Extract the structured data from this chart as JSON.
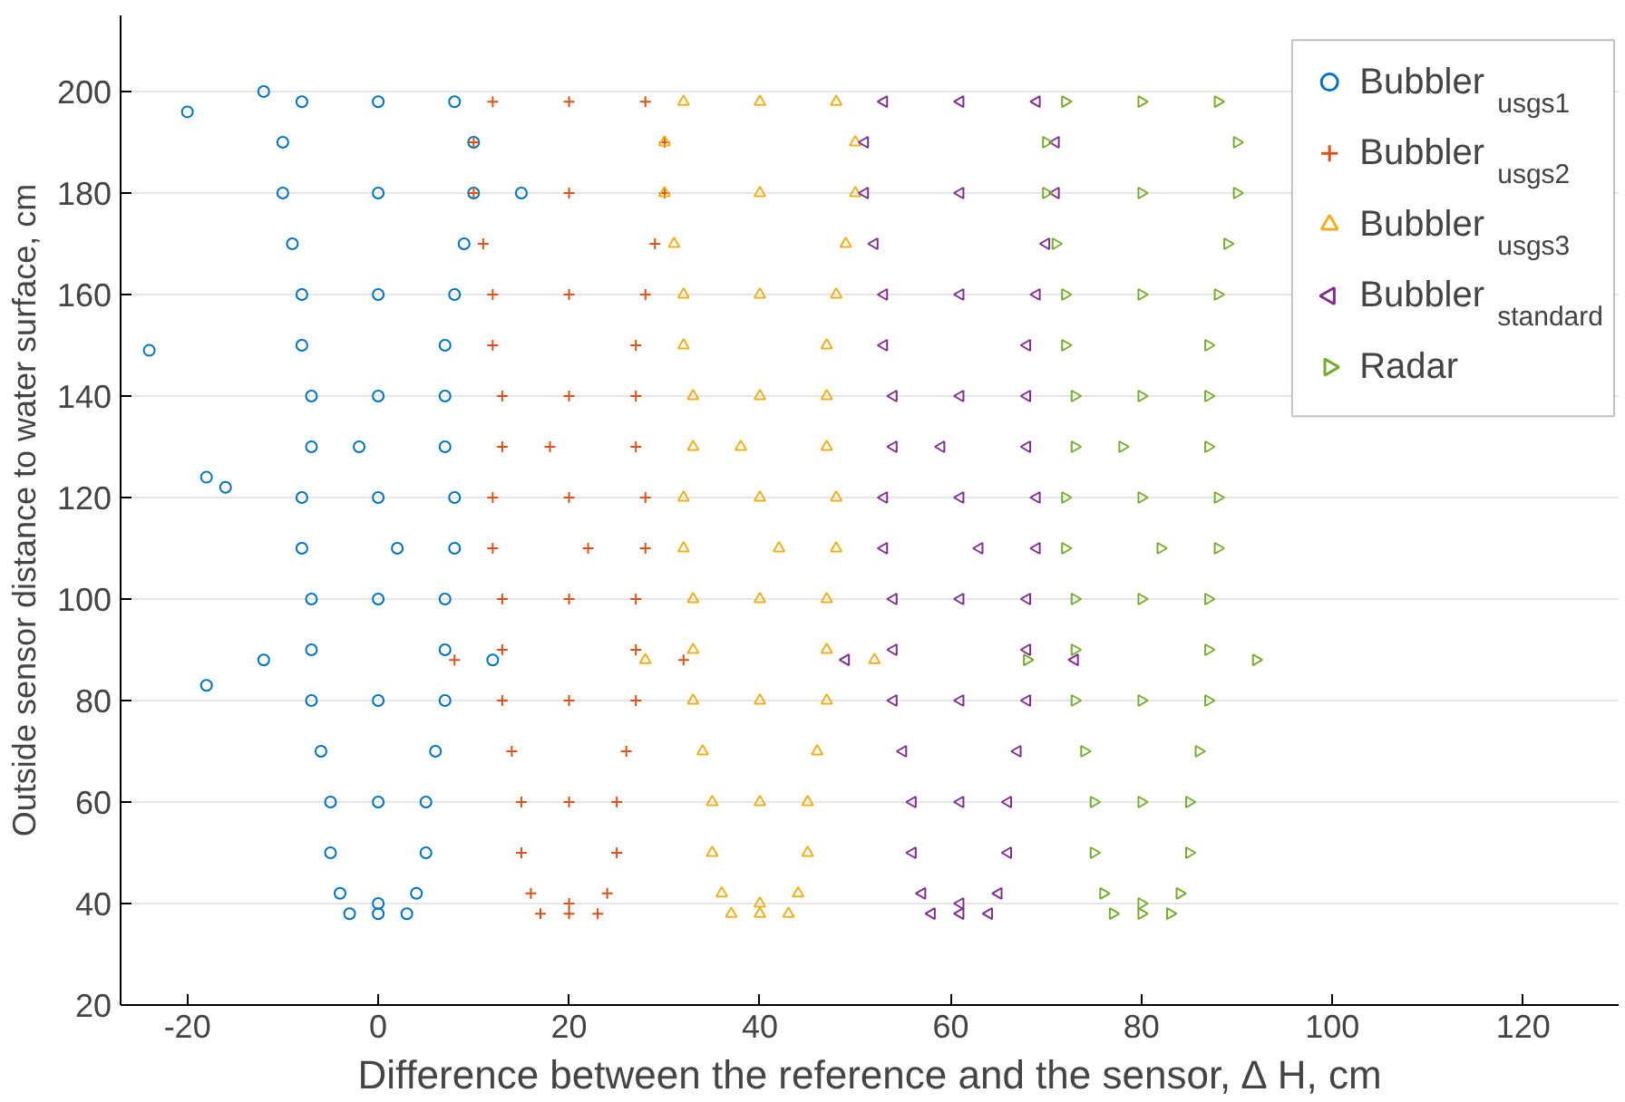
{
  "chart_data": {
    "type": "scatter",
    "xlabel": "Difference between the reference and the sensor, ∆ H, cm",
    "ylabel": "Outside sensor distance to water surface, cm",
    "xlim": [
      -27,
      130
    ],
    "ylim": [
      20,
      215
    ],
    "xticks": [
      -20,
      0,
      20,
      40,
      60,
      80,
      100,
      120
    ],
    "yticks": [
      20,
      40,
      60,
      80,
      100,
      120,
      140,
      160,
      180,
      200
    ],
    "grid": "y",
    "legend": "top right",
    "series": [
      {
        "name": "Bubbler$_{usgs1}$",
        "color": "#0072bd",
        "marker": "circle",
        "x": [
          -3,
          0,
          3,
          -4,
          4,
          -5,
          5,
          -5,
          5,
          -6,
          6,
          -7,
          7,
          0,
          0,
          -7,
          7,
          0,
          -7,
          7,
          -8,
          8,
          0,
          -8,
          8,
          -7,
          7,
          0,
          -7,
          7,
          -8,
          7,
          -8,
          8,
          0,
          -9,
          9,
          0,
          -10,
          10,
          -10,
          10,
          -8,
          0,
          8,
          12,
          -12,
          0,
          2,
          -2,
          -24,
          -18,
          -18,
          -16,
          -20,
          -12,
          15
        ],
        "values": [
          38,
          38,
          38,
          42,
          42,
          50,
          50,
          60,
          60,
          70,
          70,
          80,
          80,
          60,
          80,
          90,
          90,
          100,
          100,
          100,
          110,
          110,
          120,
          120,
          120,
          130,
          130,
          140,
          140,
          140,
          150,
          150,
          160,
          160,
          160,
          170,
          170,
          180,
          180,
          180,
          190,
          190,
          198,
          198,
          198,
          88,
          88,
          40,
          110,
          130,
          149,
          83,
          124,
          122,
          196,
          200,
          180
        ]
      },
      {
        "name": "Bubbler$_{usgs2}$",
        "color": "#d95319",
        "marker": "cross",
        "x": [
          17,
          20,
          23,
          16,
          24,
          15,
          25,
          15,
          25,
          14,
          26,
          13,
          27,
          20,
          20,
          13,
          27,
          20,
          13,
          27,
          12,
          28,
          20,
          12,
          28,
          13,
          27,
          20,
          13,
          27,
          12,
          27,
          12,
          28,
          20,
          11,
          29,
          20,
          10,
          30,
          10,
          30,
          12,
          20,
          28,
          32,
          8,
          20,
          22,
          18
        ],
        "values": [
          38,
          38,
          38,
          42,
          42,
          50,
          50,
          60,
          60,
          70,
          70,
          80,
          80,
          60,
          80,
          90,
          90,
          100,
          100,
          100,
          110,
          110,
          120,
          120,
          120,
          130,
          130,
          140,
          140,
          140,
          150,
          150,
          160,
          160,
          160,
          170,
          170,
          180,
          180,
          180,
          190,
          190,
          198,
          198,
          198,
          88,
          88,
          40,
          110,
          130
        ]
      },
      {
        "name": "Bubbler$_{usgs3}$",
        "color": "#edb120",
        "marker": "triangle",
        "x": [
          37,
          40,
          43,
          36,
          44,
          35,
          45,
          35,
          45,
          34,
          46,
          33,
          47,
          40,
          40,
          33,
          47,
          40,
          33,
          47,
          32,
          48,
          40,
          32,
          48,
          33,
          47,
          40,
          33,
          47,
          32,
          47,
          32,
          48,
          40,
          31,
          49,
          40,
          30,
          50,
          30,
          50,
          32,
          40,
          48,
          52,
          28,
          40,
          42,
          38
        ],
        "values": [
          38,
          38,
          38,
          42,
          42,
          50,
          50,
          60,
          60,
          70,
          70,
          80,
          80,
          60,
          80,
          90,
          90,
          100,
          100,
          100,
          110,
          110,
          120,
          120,
          120,
          130,
          130,
          140,
          140,
          140,
          150,
          150,
          160,
          160,
          160,
          170,
          170,
          180,
          180,
          180,
          190,
          190,
          198,
          198,
          198,
          88,
          88,
          40,
          110,
          130
        ]
      },
      {
        "name": "Bubbler$_{standard}$",
        "color": "#7e2f8e",
        "marker": "triangle_left",
        "x": [
          58,
          61,
          64,
          57,
          65,
          56,
          66,
          56,
          66,
          55,
          67,
          54,
          68,
          61,
          61,
          54,
          68,
          61,
          54,
          68,
          53,
          69,
          61,
          53,
          69,
          54,
          68,
          61,
          54,
          68,
          53,
          68,
          53,
          69,
          61,
          52,
          70,
          61,
          51,
          71,
          51,
          71,
          53,
          61,
          69,
          73,
          49,
          61,
          63,
          59
        ],
        "values": [
          38,
          38,
          38,
          42,
          42,
          50,
          50,
          60,
          60,
          70,
          70,
          80,
          80,
          60,
          80,
          90,
          90,
          100,
          100,
          100,
          110,
          110,
          120,
          120,
          120,
          130,
          130,
          140,
          140,
          140,
          150,
          150,
          160,
          160,
          160,
          170,
          170,
          180,
          180,
          180,
          190,
          190,
          198,
          198,
          198,
          88,
          88,
          40,
          110,
          130
        ]
      },
      {
        "name": "Radar",
        "color": "#77ac30",
        "marker": "triangle_right",
        "x": [
          77,
          80,
          83,
          76,
          84,
          75,
          85,
          75,
          85,
          74,
          86,
          73,
          87,
          80,
          80,
          73,
          87,
          80,
          73,
          87,
          72,
          88,
          80,
          72,
          88,
          73,
          87,
          80,
          73,
          87,
          72,
          87,
          72,
          88,
          80,
          71,
          89,
          80,
          70,
          90,
          70,
          90,
          72,
          80,
          88,
          92,
          68,
          80,
          82,
          78
        ],
        "values": [
          38,
          38,
          38,
          42,
          42,
          50,
          50,
          60,
          60,
          70,
          70,
          80,
          80,
          60,
          80,
          90,
          90,
          100,
          100,
          100,
          110,
          110,
          120,
          120,
          120,
          130,
          130,
          140,
          140,
          140,
          150,
          150,
          160,
          160,
          160,
          170,
          170,
          180,
          180,
          180,
          190,
          190,
          198,
          198,
          198,
          88,
          88,
          40,
          110,
          130
        ]
      }
    ]
  }
}
